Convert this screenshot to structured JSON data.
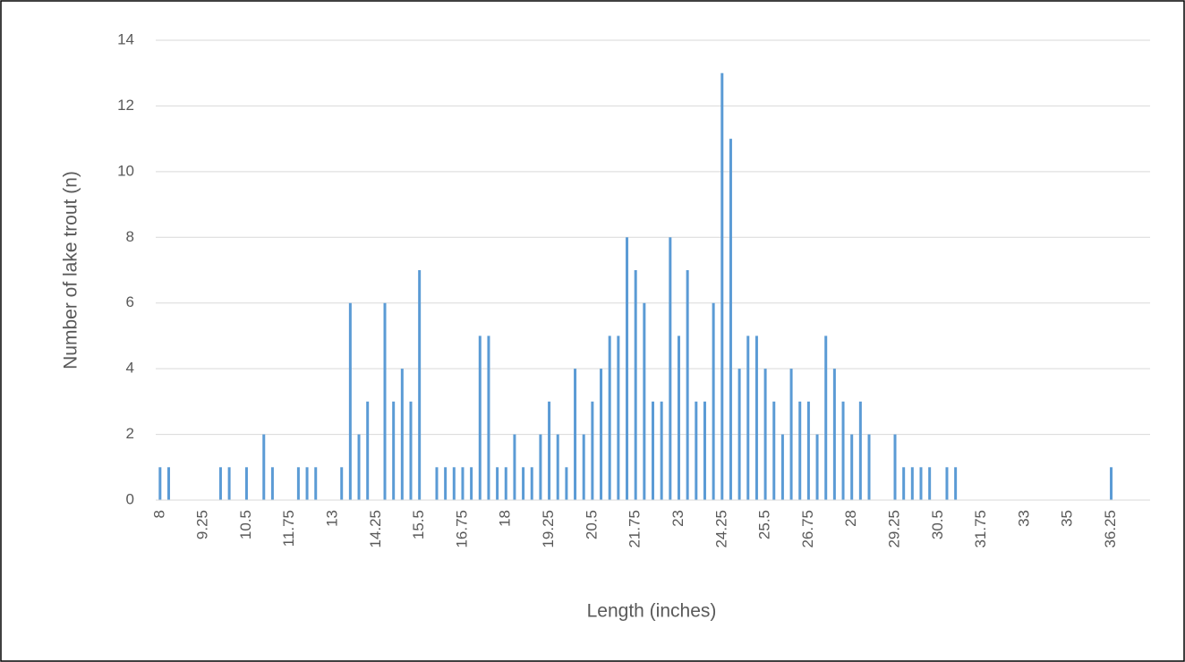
{
  "chart_data": {
    "type": "bar",
    "x_label": "Length (inches)",
    "y_label": "Number of lake trout (n)",
    "color": "#5b9bd5",
    "grid": true,
    "ylim": [
      0,
      14
    ],
    "yticks": [
      0,
      2,
      4,
      6,
      8,
      10,
      12,
      14
    ],
    "categories": [
      "8",
      null,
      null,
      null,
      null,
      "9.25",
      null,
      null,
      null,
      null,
      "10.5",
      null,
      null,
      null,
      null,
      "11.75",
      null,
      null,
      null,
      null,
      "13",
      null,
      null,
      null,
      null,
      "14.25",
      null,
      null,
      null,
      null,
      "15.5",
      null,
      null,
      null,
      null,
      "16.75",
      null,
      null,
      null,
      null,
      "18",
      null,
      null,
      null,
      null,
      "19.25",
      null,
      null,
      null,
      null,
      "20.5",
      null,
      null,
      null,
      null,
      "21.75",
      null,
      null,
      null,
      null,
      "23",
      null,
      null,
      null,
      null,
      "24.25",
      null,
      null,
      null,
      null,
      "25.5",
      null,
      null,
      null,
      null,
      "26.75",
      null,
      null,
      null,
      null,
      "28",
      null,
      null,
      null,
      null,
      "29.25",
      null,
      null,
      null,
      null,
      "30.5",
      null,
      null,
      null,
      null,
      "31.75",
      null,
      null,
      null,
      null,
      "33",
      null,
      null,
      null,
      null,
      "35",
      null,
      null,
      null,
      null,
      "36.25",
      null,
      null,
      null,
      null
    ],
    "values": [
      1,
      1,
      0,
      0,
      0,
      0,
      0,
      1,
      1,
      0,
      1,
      0,
      2,
      1,
      0,
      0,
      1,
      1,
      1,
      0,
      0,
      1,
      6,
      2,
      3,
      0,
      6,
      3,
      4,
      3,
      7,
      0,
      1,
      1,
      1,
      1,
      1,
      5,
      5,
      1,
      1,
      2,
      1,
      1,
      2,
      3,
      2,
      1,
      4,
      2,
      3,
      4,
      5,
      5,
      8,
      7,
      6,
      3,
      3,
      8,
      5,
      7,
      3,
      3,
      6,
      13,
      11,
      4,
      5,
      5,
      4,
      3,
      2,
      4,
      3,
      3,
      2,
      5,
      4,
      3,
      2,
      3,
      2,
      0,
      0,
      2,
      1,
      1,
      1,
      1,
      0,
      1,
      1,
      0,
      0,
      0,
      0,
      0,
      0,
      0,
      0,
      0,
      0,
      0,
      0,
      0,
      0,
      0,
      0,
      0,
      1,
      0,
      0,
      0,
      0
    ]
  }
}
